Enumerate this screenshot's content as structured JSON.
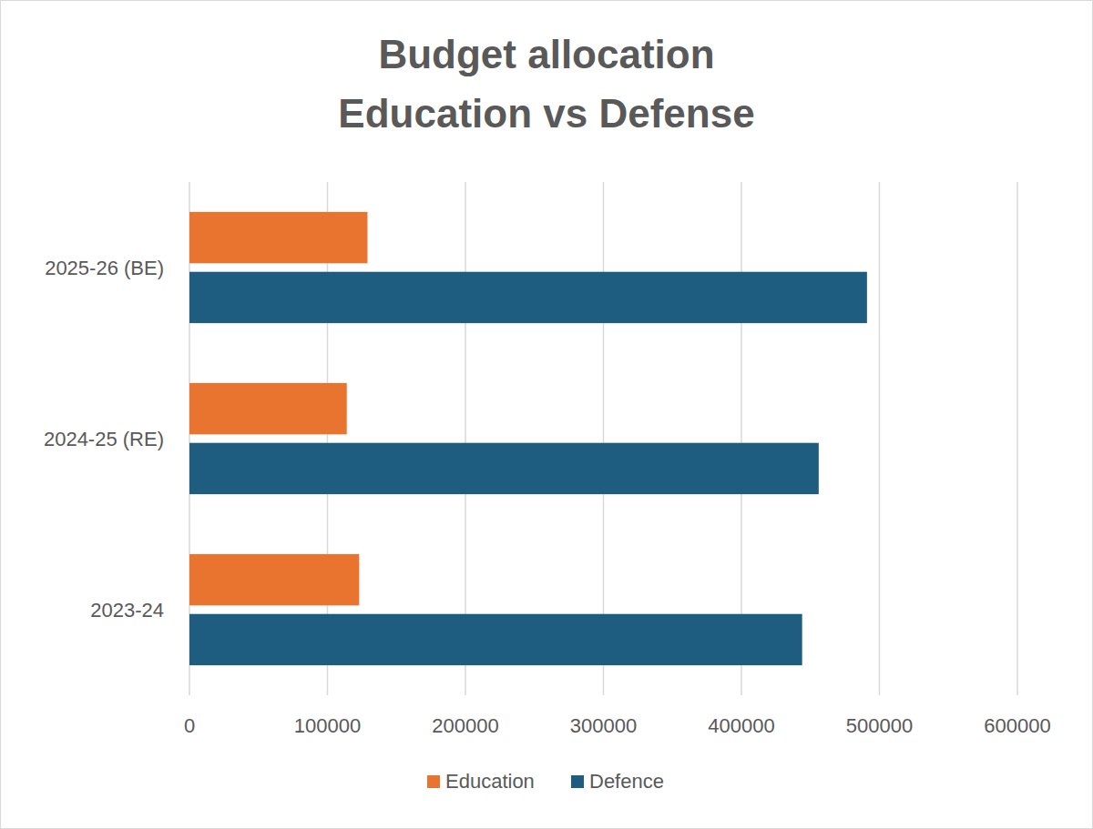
{
  "chart_data": {
    "type": "bar",
    "orientation": "horizontal",
    "title": "Budget allocation",
    "subtitle": "Education vs Defense",
    "categories": [
      "2023-24",
      "2024-25 (RE)",
      "2025-26 (BE)"
    ],
    "series": [
      {
        "name": "Education",
        "color": "#e8742f",
        "values": [
          123000,
          114000,
          129000
        ]
      },
      {
        "name": "Defence",
        "color": "#1e5c80",
        "values": [
          444000,
          456000,
          491000
        ]
      }
    ],
    "xlim": [
      0,
      600000
    ],
    "xticks": [
      0,
      100000,
      200000,
      300000,
      400000,
      500000,
      600000
    ],
    "grid": true,
    "legend": "bottom"
  }
}
